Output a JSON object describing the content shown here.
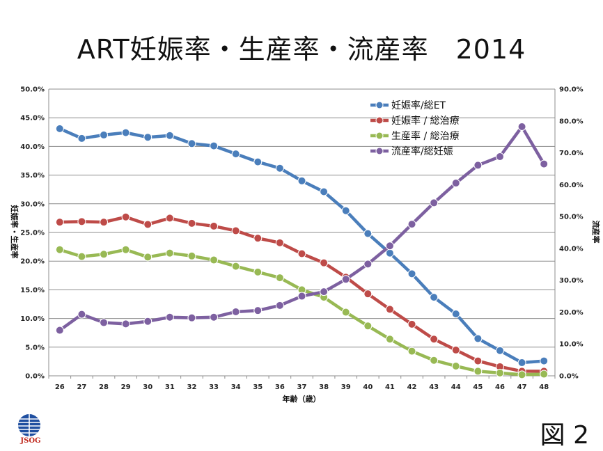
{
  "page": {
    "title": "ART妊娠率・生産率・流産率　2014",
    "figure_label": "図 2",
    "logo_text": "JSOG"
  },
  "chart_data": {
    "type": "line",
    "categories": [
      "26",
      "27",
      "28",
      "29",
      "30",
      "31",
      "32",
      "33",
      "34",
      "35",
      "36",
      "37",
      "38",
      "39",
      "40",
      "41",
      "42",
      "43",
      "44",
      "45",
      "46",
      "47",
      "48"
    ],
    "xlabel": "年齢（歳）",
    "ylabel_left": "妊娠率・生産率",
    "ylabel_right": "流産率",
    "ylim_left": [
      0,
      50
    ],
    "ylim_right": [
      0,
      90
    ],
    "left_ticks": [
      "0.0%",
      "5.0%",
      "10.0%",
      "15.0%",
      "20.0%",
      "25.0%",
      "30.0%",
      "35.0%",
      "40.0%",
      "45.0%",
      "50.0%"
    ],
    "right_ticks": [
      "0.0%",
      "10.0%",
      "20.0%",
      "30.0%",
      "40.0%",
      "50.0%",
      "60.0%",
      "70.0%",
      "80.0%",
      "90.0%"
    ],
    "grid": true,
    "legend_position": "top-right",
    "series": [
      {
        "name": "妊娠率/総ET",
        "axis": "left",
        "color": "#4a7ebb",
        "values": [
          43.1,
          41.4,
          42.0,
          42.4,
          41.6,
          41.9,
          40.5,
          40.1,
          38.7,
          37.3,
          36.2,
          34.0,
          32.1,
          28.8,
          24.8,
          21.4,
          17.8,
          13.7,
          10.8,
          6.5,
          4.4,
          2.3,
          2.6
        ]
      },
      {
        "name": "妊娠率 / 総治療",
        "axis": "left",
        "color": "#be4b48",
        "values": [
          26.8,
          26.9,
          26.8,
          27.7,
          26.4,
          27.5,
          26.6,
          26.1,
          25.3,
          24.0,
          23.2,
          21.3,
          19.7,
          17.2,
          14.3,
          11.6,
          9.0,
          6.4,
          4.5,
          2.6,
          1.6,
          0.8,
          0.8
        ]
      },
      {
        "name": "生産率 / 総治療",
        "axis": "left",
        "color": "#98b954",
        "values": [
          22.0,
          20.8,
          21.2,
          22.0,
          20.7,
          21.4,
          20.9,
          20.2,
          19.1,
          18.1,
          17.1,
          15.0,
          13.7,
          11.1,
          8.7,
          6.4,
          4.3,
          2.7,
          1.7,
          0.8,
          0.5,
          0.2,
          0.3
        ]
      },
      {
        "name": "流産率/総妊娠",
        "axis": "right",
        "color": "#7d60a0",
        "values": [
          14.3,
          19.3,
          16.7,
          16.3,
          17.1,
          18.4,
          18.2,
          18.4,
          20.1,
          20.5,
          22.1,
          25.0,
          26.4,
          30.3,
          35.1,
          40.8,
          47.6,
          54.3,
          60.5,
          66.1,
          68.8,
          78.2,
          66.5
        ]
      }
    ]
  }
}
